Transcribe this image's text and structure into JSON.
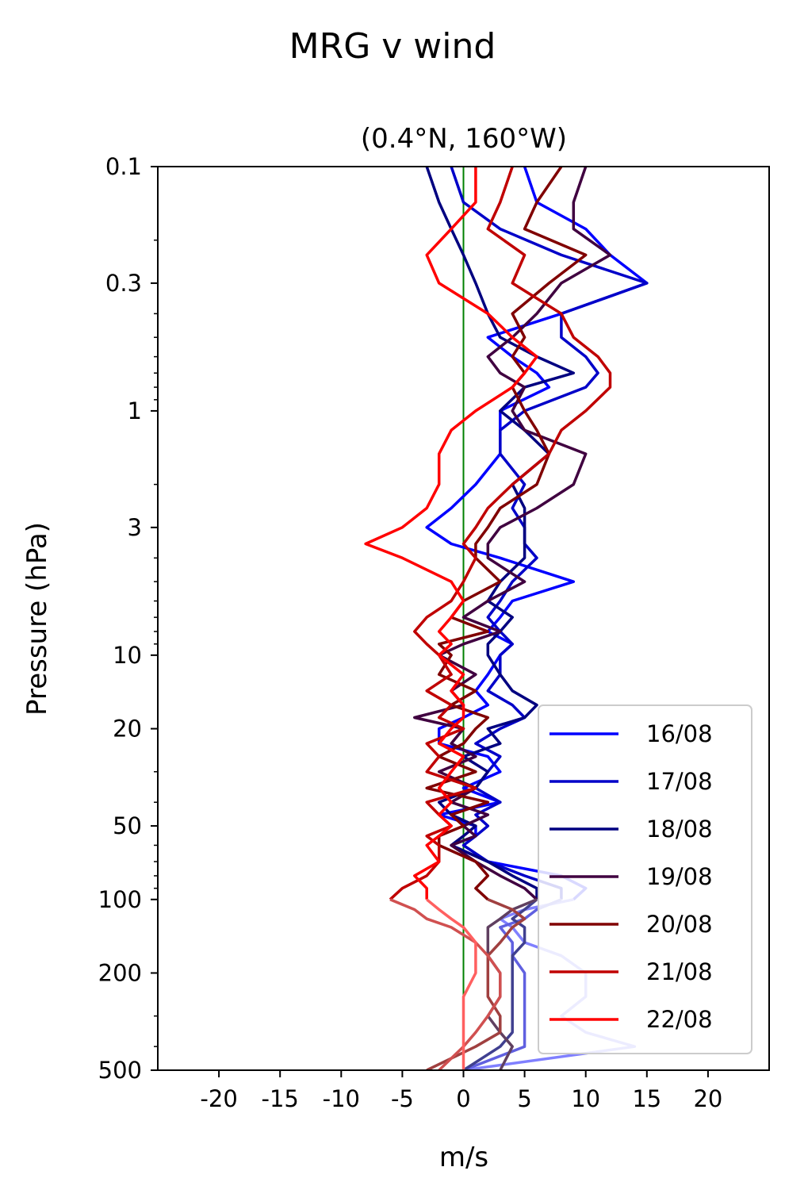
{
  "chart_data": {
    "type": "line",
    "title": "MRG v wind",
    "subtitle": "(0.4°N, 160°W)",
    "xlabel": "m/s",
    "ylabel": "Pressure (hPa)",
    "xlim": [
      -25,
      25
    ],
    "ylim": [
      500,
      0.1
    ],
    "yscale": "log",
    "xticks": [
      -20,
      -15,
      -10,
      -5,
      0,
      5,
      10,
      15,
      20
    ],
    "xtick_labels": [
      "-20",
      "-15",
      "-10",
      "-5",
      "0",
      "5",
      "10",
      "15",
      "20"
    ],
    "yticks": [
      0.1,
      0.3,
      1,
      3,
      10,
      20,
      50,
      100,
      200,
      500
    ],
    "ytick_labels": [
      "0.1",
      "0.3",
      "1",
      "3",
      "10",
      "20",
      "50",
      "100",
      "200",
      "500"
    ],
    "zero_line_color": "#008000",
    "grid": false,
    "legend_position": "lower-right",
    "series": [
      {
        "name": "16/08",
        "color": "#0000ff",
        "lowlevel_color": "#8080ff",
        "p": [
          0.1,
          0.14,
          0.18,
          0.23,
          0.3,
          0.4,
          0.5,
          0.6,
          0.7,
          0.8,
          1.0,
          1.2,
          1.5,
          2.0,
          2.5,
          3.0,
          3.5,
          4.0,
          5.0,
          6.0,
          7.0,
          8.0,
          9.0,
          10,
          12,
          14,
          16,
          18,
          20,
          23,
          26,
          30,
          35,
          40,
          45,
          50,
          55,
          60,
          70,
          80,
          90,
          100,
          110,
          120,
          130,
          150,
          170,
          200,
          250,
          300,
          350,
          400,
          500
        ],
        "x": [
          5,
          6,
          10,
          12,
          15,
          8,
          2,
          4,
          6,
          7,
          3,
          3,
          3,
          1,
          -1,
          -3,
          -1,
          3,
          9,
          4,
          3,
          2,
          4,
          3,
          2,
          1,
          2,
          0,
          -2,
          -2,
          2,
          3,
          0,
          3,
          -2,
          1,
          1,
          -1,
          2,
          8,
          10,
          9,
          5,
          3,
          4,
          5,
          8,
          10,
          10,
          8,
          10,
          14,
          0
        ]
      },
      {
        "name": "17/08",
        "color": "#0000c8",
        "lowlevel_color": "#6060e0",
        "p": [
          0.1,
          0.14,
          0.18,
          0.23,
          0.3,
          0.4,
          0.5,
          0.6,
          0.7,
          0.8,
          1.0,
          1.2,
          1.5,
          2.0,
          2.5,
          3.0,
          3.5,
          4.0,
          5.0,
          6.0,
          7.0,
          8.0,
          9.0,
          10,
          12,
          14,
          16,
          18,
          20,
          23,
          26,
          30,
          35,
          40,
          45,
          50,
          55,
          60,
          70,
          80,
          90,
          100,
          110,
          120,
          130,
          150,
          170,
          200,
          250,
          300,
          350,
          400,
          500
        ],
        "x": [
          -1,
          0,
          3,
          8,
          15,
          8,
          8,
          10,
          11,
          10,
          5,
          3,
          3,
          5,
          4,
          5,
          5,
          6,
          4,
          3,
          2,
          3,
          4,
          3,
          3,
          2,
          4,
          5,
          3,
          1,
          3,
          2,
          1,
          3,
          1,
          2,
          1,
          0,
          2,
          5,
          8,
          8,
          6,
          5,
          3,
          4,
          4,
          5,
          5,
          5,
          5,
          5,
          0
        ]
      },
      {
        "name": "18/08",
        "color": "#000080",
        "lowlevel_color": "#404090",
        "p": [
          0.1,
          0.14,
          0.18,
          0.23,
          0.3,
          0.4,
          0.5,
          0.6,
          0.7,
          0.8,
          1.0,
          1.2,
          1.5,
          2.0,
          2.5,
          3.0,
          3.5,
          4.0,
          5.0,
          6.0,
          7.0,
          8.0,
          9.0,
          10,
          12,
          14,
          16,
          18,
          20,
          23,
          26,
          30,
          35,
          40,
          45,
          50,
          55,
          60,
          70,
          80,
          90,
          100,
          110,
          120,
          130,
          150,
          170,
          200,
          250,
          300,
          350,
          400,
          500
        ],
        "x": [
          -3,
          -2,
          -1,
          0,
          1,
          2,
          3,
          6,
          9,
          5,
          3,
          5,
          7,
          4,
          5,
          5,
          5,
          5,
          3,
          2,
          4,
          3,
          2,
          2,
          3,
          4,
          6,
          5,
          2,
          3,
          0,
          2,
          1,
          -2,
          -1,
          1,
          0,
          -1,
          2,
          4,
          6,
          6,
          5,
          4,
          5,
          5,
          4,
          4,
          4,
          4,
          4,
          3,
          0
        ]
      },
      {
        "name": "19/08",
        "color": "#400040",
        "lowlevel_color": "#604060",
        "p": [
          0.1,
          0.14,
          0.18,
          0.23,
          0.3,
          0.4,
          0.5,
          0.6,
          0.7,
          0.8,
          1.0,
          1.2,
          1.5,
          2.0,
          2.5,
          3.0,
          3.5,
          4.0,
          5.0,
          6.0,
          7.0,
          8.0,
          9.0,
          10,
          12,
          14,
          16,
          18,
          20,
          23,
          26,
          30,
          35,
          40,
          45,
          50,
          55,
          60,
          70,
          80,
          90,
          100,
          110,
          120,
          130,
          150,
          170,
          200,
          250,
          300,
          350,
          400,
          500
        ],
        "x": [
          10,
          9,
          9,
          12,
          8,
          6,
          4,
          2,
          3,
          5,
          4,
          5,
          10,
          9,
          6,
          3,
          2,
          2,
          5,
          2,
          0,
          3,
          0,
          -2,
          1,
          -1,
          0,
          -4,
          0,
          -1,
          1,
          -2,
          1,
          -1,
          2,
          0,
          1,
          -1,
          1,
          3,
          5,
          6,
          4,
          3,
          2,
          2,
          2,
          3,
          3,
          2,
          3,
          4,
          3
        ]
      },
      {
        "name": "20/08",
        "color": "#800000",
        "lowlevel_color": "#a04040",
        "p": [
          0.1,
          0.14,
          0.18,
          0.23,
          0.3,
          0.4,
          0.5,
          0.6,
          0.7,
          0.8,
          1.0,
          1.2,
          1.5,
          2.0,
          2.5,
          3.0,
          3.5,
          4.0,
          5.0,
          6.0,
          7.0,
          8.0,
          9.0,
          10,
          12,
          14,
          16,
          18,
          20,
          23,
          26,
          30,
          35,
          40,
          45,
          50,
          55,
          60,
          70,
          80,
          90,
          100,
          110,
          120,
          130,
          150,
          170,
          200,
          250,
          300,
          350,
          400,
          500
        ],
        "x": [
          8,
          6,
          5,
          10,
          7,
          4,
          5,
          4,
          5,
          4,
          5,
          6,
          7,
          6,
          3,
          2,
          1,
          1,
          3,
          0,
          -1,
          2,
          -2,
          -1,
          -2,
          1,
          -1,
          2,
          1,
          0,
          -2,
          1,
          -3,
          2,
          -1,
          0,
          -2,
          -2,
          1,
          2,
          1,
          2,
          4,
          5,
          4,
          3,
          2,
          2,
          2,
          3,
          3,
          1,
          -3
        ]
      },
      {
        "name": "21/08",
        "color": "#c00000",
        "lowlevel_color": "#d05050",
        "p": [
          0.1,
          0.14,
          0.18,
          0.23,
          0.3,
          0.4,
          0.5,
          0.6,
          0.7,
          0.8,
          1.0,
          1.2,
          1.5,
          2.0,
          2.5,
          3.0,
          3.5,
          4.0,
          5.0,
          6.0,
          7.0,
          8.0,
          9.0,
          10,
          12,
          14,
          16,
          18,
          20,
          23,
          26,
          30,
          35,
          40,
          45,
          50,
          55,
          60,
          70,
          80,
          90,
          100,
          110,
          120,
          130,
          150,
          170,
          200,
          250,
          300,
          350,
          400,
          500
        ],
        "x": [
          4,
          3,
          2,
          5,
          4,
          8,
          9,
          11,
          12,
          12,
          10,
          8,
          7,
          4,
          2,
          1,
          0,
          1,
          0,
          -1,
          -3,
          -4,
          -3,
          -2,
          -1,
          -3,
          -1,
          -2,
          0,
          -3,
          -2,
          -3,
          1,
          -3,
          -2,
          -1,
          -3,
          -2,
          -2,
          -3,
          -5,
          -6,
          -4,
          -3,
          -1,
          1,
          2,
          3,
          3,
          2,
          1,
          0,
          -2
        ]
      },
      {
        "name": "22/08",
        "color": "#ff0000",
        "lowlevel_color": "#ff6060",
        "p": [
          0.1,
          0.14,
          0.18,
          0.23,
          0.3,
          0.4,
          0.5,
          0.6,
          0.7,
          0.8,
          1.0,
          1.2,
          1.5,
          2.0,
          2.5,
          3.0,
          3.5,
          4.0,
          5.0,
          6.0,
          7.0,
          8.0,
          9.0,
          10,
          12,
          14,
          16,
          18,
          20,
          23,
          26,
          30,
          35,
          40,
          45,
          50,
          55,
          60,
          70,
          80,
          90,
          100,
          110,
          120,
          130,
          150,
          170,
          200,
          250,
          300,
          350,
          400,
          500
        ],
        "x": [
          1,
          1,
          -1,
          -3,
          -2,
          2,
          4,
          6,
          5,
          4,
          1,
          -1,
          -2,
          -2,
          -3,
          -5,
          -8,
          -5,
          -1,
          0,
          -1,
          -2,
          -1,
          -2,
          0,
          -1,
          0,
          0,
          -1,
          -2,
          0,
          -1,
          -2,
          -1,
          -2,
          -1,
          -2,
          -3,
          -2,
          -4,
          -3,
          -3,
          -2,
          -1,
          0,
          1,
          1,
          1,
          0,
          0,
          0,
          0,
          0
        ]
      }
    ]
  }
}
